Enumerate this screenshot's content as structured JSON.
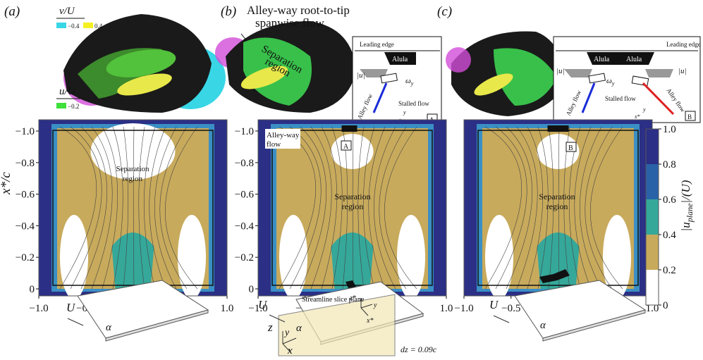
{
  "panels": [
    {
      "label": "(a)",
      "legend": {
        "v_title": "v/U",
        "v_min": "−0.4",
        "v_max": "0.4",
        "u_title": "u/U",
        "u_min": "−0.2"
      },
      "plot_label": [
        "Separation",
        "region"
      ],
      "sketch": {
        "freestream": "U",
        "angle": "α"
      }
    },
    {
      "label": "(b)",
      "callout": [
        "Alley-way root-to-tip",
        "spanwise flow"
      ],
      "render_label": [
        "Separation",
        "region"
      ],
      "inset": {
        "leading_edge": "Leading edge",
        "alula": "Alula",
        "speed": "|u|",
        "vorticity": "ω",
        "vorticity_sub": "y",
        "alley_flow": "Alley flow",
        "stalled_flow": "Stalled flow",
        "axis_y": "y",
        "axis_x": "x*",
        "tag": "A"
      },
      "plot_callout": [
        "Alley-way",
        "flow"
      ],
      "plot_tag": "A",
      "plot_label": [
        "Separation",
        "region"
      ],
      "sketch": {
        "freestream": "U",
        "plane": "Streamline slice plane",
        "axis_z_star": "z*",
        "axis_y_plane": "y",
        "axis_x_star": "x*",
        "axis_z": "z",
        "axis_y": "y",
        "axis_x": "x",
        "angle": "α",
        "offset": "dz = 0.09c"
      }
    },
    {
      "label": "(c)",
      "inset": {
        "leading_edge": "Leading edge",
        "alula_left": "Alula",
        "alula_right": "Alula",
        "speed_left": "|u|",
        "speed_right": "|u|",
        "vorticity": "ω",
        "vorticity_sub": "y",
        "alley_flow_left": "Alley flow",
        "stalled_flow": "Stalled flow",
        "alley_flow_right": "Alley flow",
        "axis_y": "y",
        "axis_x": "x*",
        "tag": "B"
      },
      "plot_tag": "B",
      "plot_label": [
        "Separation",
        "region"
      ],
      "sketch": {
        "freestream": "U",
        "angle": "α"
      }
    }
  ],
  "axes": {
    "x_label": "y/c",
    "y_label": "x*/c",
    "x_ticks": [
      "−1.0",
      "−0.5",
      "0",
      "0.5",
      "1.0"
    ],
    "y_ticks": [
      "−1.0",
      "−0.8",
      "−0.6",
      "−0.4",
      "−0.2",
      "0"
    ]
  },
  "colorbar": {
    "label_start": "|u",
    "label_sub": "plane",
    "label_end": "|/(U)",
    "ticks": [
      "1.0",
      "0.8",
      "0.6",
      "0.4",
      "0.2",
      "0"
    ]
  }
}
